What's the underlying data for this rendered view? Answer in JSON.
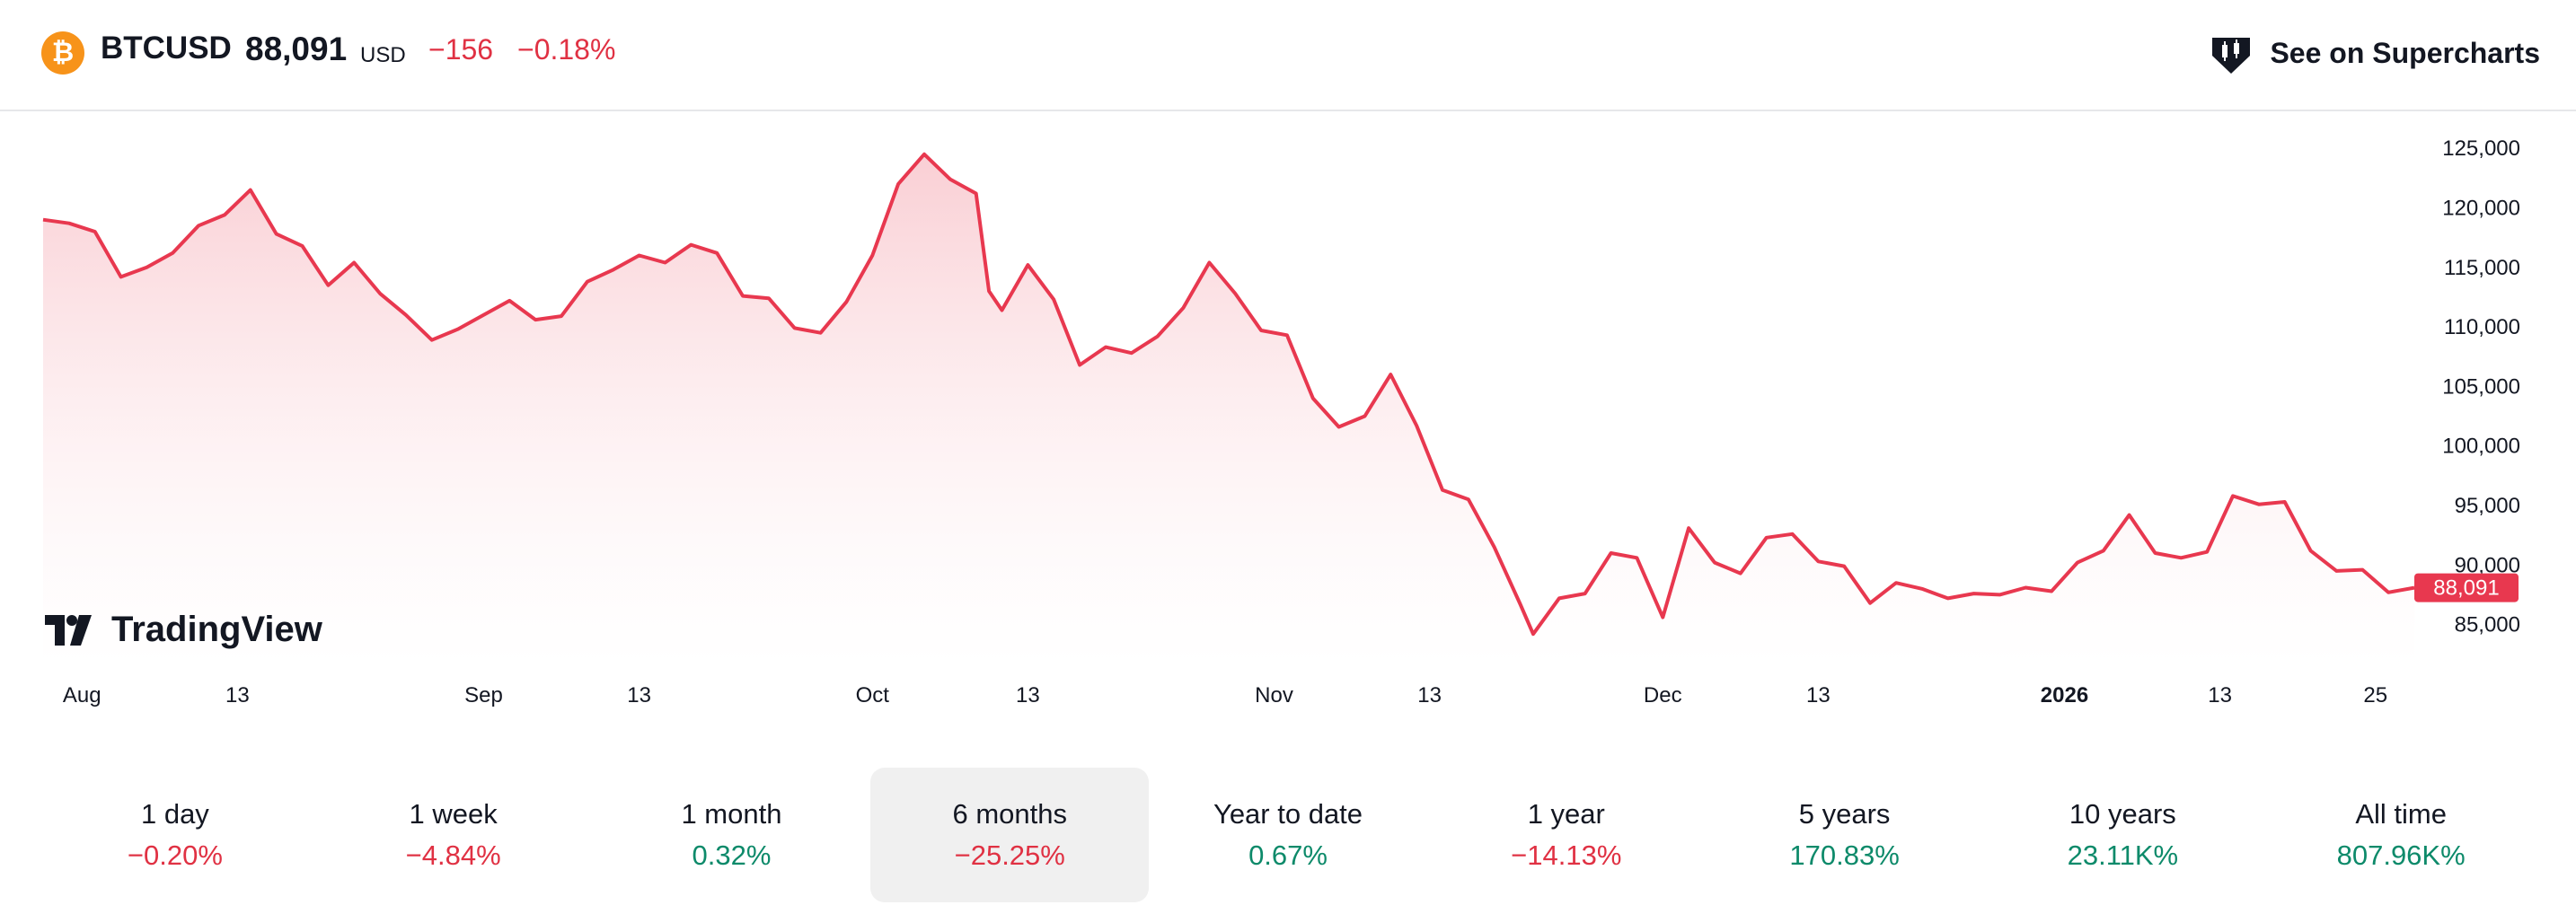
{
  "header": {
    "coin_glyph": "₿",
    "symbol": "BTCUSD",
    "price": "88,091",
    "currency": "USD",
    "change_abs": "−156",
    "change_pct": "−0.18%",
    "supercharts_label": "See on Supercharts"
  },
  "watermark": "TradingView",
  "colors": {
    "line": "#e8384f",
    "fill_top": "#f9c9cf",
    "negative": "#e03143",
    "positive": "#0d8a6a",
    "coin": "#f7931a"
  },
  "periods": [
    {
      "label": "1 day",
      "value": "−0.20%",
      "trend": "neg",
      "active": false
    },
    {
      "label": "1 week",
      "value": "−4.84%",
      "trend": "neg",
      "active": false
    },
    {
      "label": "1 month",
      "value": "0.32%",
      "trend": "pos",
      "active": false
    },
    {
      "label": "6 months",
      "value": "−25.25%",
      "trend": "neg",
      "active": true
    },
    {
      "label": "Year to date",
      "value": "0.67%",
      "trend": "pos",
      "active": false
    },
    {
      "label": "1 year",
      "value": "−14.13%",
      "trend": "neg",
      "active": false
    },
    {
      "label": "5 years",
      "value": "170.83%",
      "trend": "pos",
      "active": false
    },
    {
      "label": "10 years",
      "value": "23.11K%",
      "trend": "pos",
      "active": false
    },
    {
      "label": "All time",
      "value": "807.96K%",
      "trend": "pos",
      "active": false
    }
  ],
  "chart_data": {
    "type": "area",
    "title": "",
    "xlabel": "",
    "ylabel": "",
    "ylim": [
      81500,
      127500
    ],
    "xlim": [
      "2025-07-29",
      "2026-01-28"
    ],
    "y_ticks": [
      125000,
      120000,
      115000,
      110000,
      105000,
      100000,
      95000,
      90000,
      85000
    ],
    "y_tick_labels": [
      "125,000",
      "120,000",
      "115,000",
      "110,000",
      "105,000",
      "100,000",
      "95,000",
      "90,000",
      "85,000"
    ],
    "x_ticks": [
      {
        "date": "2025-08-01",
        "label": "Aug",
        "bold": false
      },
      {
        "date": "2025-08-13",
        "label": "13",
        "bold": false
      },
      {
        "date": "2025-09-01",
        "label": "Sep",
        "bold": false
      },
      {
        "date": "2025-09-13",
        "label": "13",
        "bold": false
      },
      {
        "date": "2025-10-01",
        "label": "Oct",
        "bold": false
      },
      {
        "date": "2025-10-13",
        "label": "13",
        "bold": false
      },
      {
        "date": "2025-11-01",
        "label": "Nov",
        "bold": false
      },
      {
        "date": "2025-11-13",
        "label": "13",
        "bold": false
      },
      {
        "date": "2025-12-01",
        "label": "Dec",
        "bold": false
      },
      {
        "date": "2025-12-13",
        "label": "13",
        "bold": false
      },
      {
        "date": "2026-01-01",
        "label": "2026",
        "bold": true
      },
      {
        "date": "2026-01-13",
        "label": "13",
        "bold": false
      },
      {
        "date": "2026-01-25",
        "label": "25",
        "bold": false
      }
    ],
    "last_value_label": "88,091",
    "grid": false,
    "series": [
      {
        "x": [
          "2025-07-29",
          "2025-07-31",
          "2025-08-02",
          "2025-08-04",
          "2025-08-06",
          "2025-08-08",
          "2025-08-10",
          "2025-08-12",
          "2025-08-14",
          "2025-08-16",
          "2025-08-18",
          "2025-08-20",
          "2025-08-22",
          "2025-08-24",
          "2025-08-26",
          "2025-08-28",
          "2025-08-30",
          "2025-09-01",
          "2025-09-03",
          "2025-09-05",
          "2025-09-07",
          "2025-09-09",
          "2025-09-11",
          "2025-09-13",
          "2025-09-15",
          "2025-09-17",
          "2025-09-19",
          "2025-09-21",
          "2025-09-23",
          "2025-09-25",
          "2025-09-27",
          "2025-09-29",
          "2025-10-01",
          "2025-10-03",
          "2025-10-05",
          "2025-10-07",
          "2025-10-09",
          "2025-10-10",
          "2025-10-11",
          "2025-10-13",
          "2025-10-15",
          "2025-10-17",
          "2025-10-19",
          "2025-10-21",
          "2025-10-23",
          "2025-10-25",
          "2025-10-27",
          "2025-10-29",
          "2025-10-31",
          "2025-11-02",
          "2025-11-04",
          "2025-11-06",
          "2025-11-08",
          "2025-11-10",
          "2025-11-12",
          "2025-11-14",
          "2025-11-16",
          "2025-11-18",
          "2025-11-20",
          "2025-11-21",
          "2025-11-23",
          "2025-11-25",
          "2025-11-27",
          "2025-11-29",
          "2025-12-01",
          "2025-12-03",
          "2025-12-05",
          "2025-12-07",
          "2025-12-09",
          "2025-12-11",
          "2025-12-13",
          "2025-12-15",
          "2025-12-17",
          "2025-12-19",
          "2025-12-21",
          "2025-12-23",
          "2025-12-25",
          "2025-12-27",
          "2025-12-29",
          "2025-12-31",
          "2026-01-02",
          "2026-01-04",
          "2026-01-06",
          "2026-01-08",
          "2026-01-10",
          "2026-01-12",
          "2026-01-14",
          "2026-01-16",
          "2026-01-18",
          "2026-01-20",
          "2026-01-22",
          "2026-01-24",
          "2026-01-26",
          "2026-01-28"
        ],
        "y": [
          119000,
          118700,
          118000,
          114200,
          115000,
          116200,
          118500,
          119400,
          121500,
          117800,
          116800,
          113500,
          115400,
          112800,
          111000,
          108900,
          109800,
          111000,
          112200,
          110600,
          110900,
          113800,
          114800,
          116000,
          115400,
          116900,
          116200,
          112600,
          112400,
          109900,
          109500,
          112100,
          116000,
          122000,
          124500,
          122400,
          121200,
          113000,
          111400,
          115200,
          112300,
          106800,
          108300,
          107800,
          109200,
          111600,
          115400,
          112800,
          109700,
          109300,
          104000,
          101600,
          102500,
          106000,
          101700,
          96300,
          95500,
          91500,
          86700,
          84200,
          87200,
          87600,
          91000,
          90600,
          85600,
          93100,
          90200,
          89300,
          92300,
          92600,
          90300,
          89900,
          86800,
          88500,
          88000,
          87200,
          87600,
          87500,
          88100,
          87800,
          90200,
          91200,
          94200,
          91000,
          90600,
          91100,
          95800,
          95100,
          95300,
          91200,
          89500,
          89600,
          87700,
          88091
        ]
      }
    ]
  }
}
